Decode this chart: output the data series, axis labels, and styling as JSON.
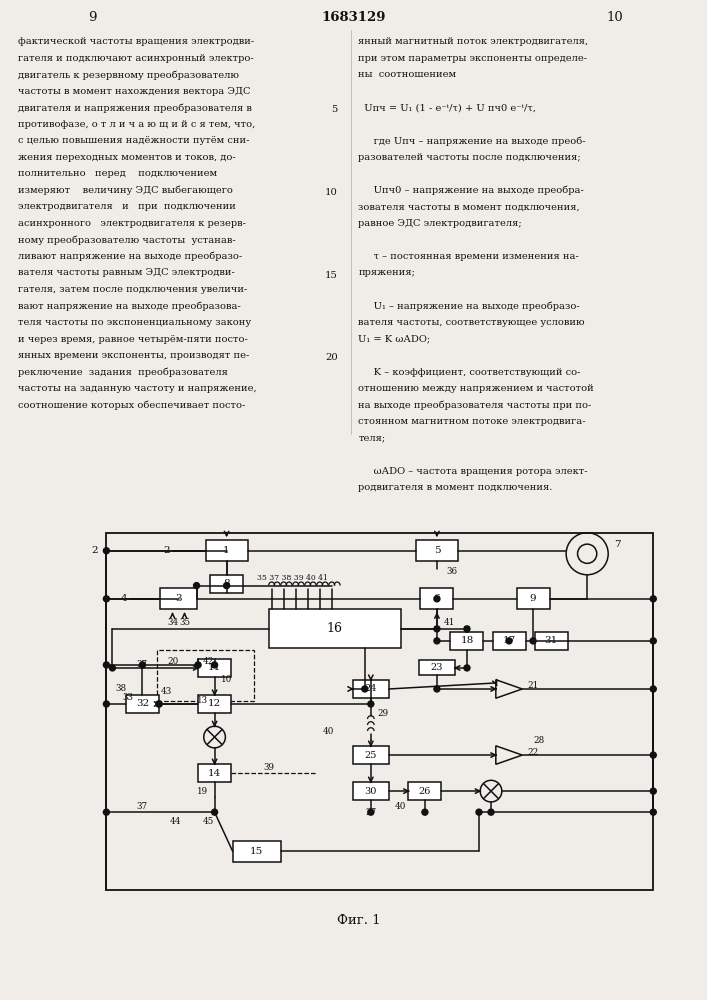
{
  "background_color": "#f0ede8",
  "line_color": "#111111",
  "text_color": "#111111",
  "page_left": "9",
  "page_center": "1683129",
  "page_right": "10",
  "caption": "Фиг. 1"
}
